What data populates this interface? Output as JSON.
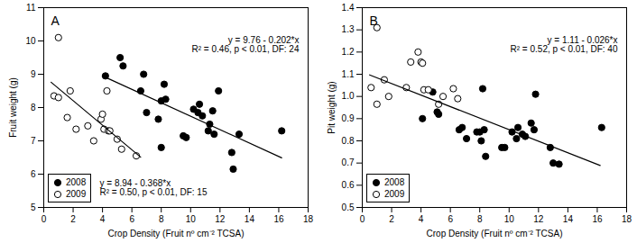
{
  "chart_data": [
    {
      "type": "scatter",
      "title": "A",
      "x_label": "Crop Density (Fruit nº cm⁻² TCSA)",
      "y_label": "Fruit weight (g)",
      "xlim": [
        0,
        18
      ],
      "xticks": [
        0,
        2,
        4,
        6,
        8,
        10,
        12,
        14,
        16,
        18
      ],
      "ylim": [
        5,
        11
      ],
      "yticks": [
        5,
        6,
        7,
        8,
        9,
        10,
        11
      ],
      "legend": "bottom-left",
      "annotations": [
        [
          "y = 9.76 - 0.202*x",
          "R² = 0.46, p < 0.01, DF: 24"
        ],
        [
          "y = 8.94 - 0.368*x",
          "R² = 0.50, p < 0.01, DF: 15"
        ]
      ],
      "series": [
        {
          "name": "2008",
          "color": "#000000",
          "marker": "filled",
          "x": [
            4.2,
            5.2,
            5.4,
            6.6,
            6.8,
            7.0,
            7.8,
            8.0,
            8.0,
            8.2,
            8.3,
            9.5,
            9.7,
            10.2,
            10.5,
            10.6,
            10.8,
            11.2,
            11.3,
            11.5,
            11.9,
            11.6,
            12.8,
            12.9,
            13.3,
            16.2
          ],
          "values": [
            8.95,
            9.5,
            9.25,
            8.5,
            9.0,
            7.85,
            7.65,
            6.8,
            8.2,
            8.7,
            8.25,
            7.15,
            7.1,
            7.95,
            7.85,
            8.1,
            7.75,
            7.3,
            7.5,
            7.9,
            8.5,
            7.2,
            6.65,
            6.15,
            7.2,
            7.3
          ]
        },
        {
          "name": "2009",
          "color": "#000000",
          "marker": "open",
          "x": [
            1.0,
            0.7,
            1.0,
            1.8,
            1.6,
            2.2,
            3.0,
            3.4,
            3.9,
            4.0,
            4.1,
            4.3,
            4.4,
            4.5,
            5.0,
            5.3,
            6.3
          ],
          "values": [
            10.1,
            8.35,
            8.3,
            8.5,
            7.7,
            7.35,
            7.45,
            7.0,
            7.65,
            7.8,
            7.35,
            8.5,
            7.3,
            7.3,
            7.05,
            6.75,
            6.55
          ]
        },
        {
          "type": "line",
          "color": "#000000",
          "x": [
            4.0,
            16.2
          ],
          "values": [
            8.95,
            6.49
          ]
        },
        {
          "type": "line",
          "color": "#000000",
          "x": [
            0.5,
            6.6
          ],
          "values": [
            8.76,
            6.51
          ]
        }
      ]
    },
    {
      "type": "scatter",
      "title": "B",
      "x_label": "Crop Density (Fruit nº cm⁻² TCSA)",
      "y_label": "Pit weight (g)",
      "xlim": [
        0,
        18
      ],
      "xticks": [
        0,
        2,
        4,
        6,
        8,
        10,
        12,
        14,
        16,
        18
      ],
      "ylim": [
        0.5,
        1.4
      ],
      "yticks": [
        0.5,
        0.6,
        0.7,
        0.8,
        0.9,
        {
          "value": 1,
          "label": "1.0"
        },
        1.1,
        1.2,
        1.3,
        1.4
      ],
      "legend": "bottom-left",
      "annotations": [
        [
          "y = 1.11 - 0.026*x",
          "R² = 0.52, p < 0.01, DF: 40"
        ]
      ],
      "series": [
        {
          "name": "2008",
          "color": "#000000",
          "marker": "filled",
          "x": [
            4.1,
            4.8,
            5.1,
            5.2,
            6.6,
            6.8,
            7.1,
            7.8,
            8.0,
            8.1,
            8.2,
            8.3,
            8.4,
            9.5,
            9.7,
            10.2,
            10.5,
            10.6,
            10.9,
            11.1,
            11.5,
            11.8,
            11.7,
            12.8,
            13.0,
            13.4,
            16.3
          ],
          "values": [
            0.9,
            1.02,
            0.93,
            0.92,
            0.85,
            0.86,
            0.81,
            0.84,
            0.84,
            0.8,
            1.035,
            0.85,
            0.73,
            0.77,
            0.77,
            0.84,
            0.81,
            0.86,
            0.83,
            0.82,
            0.88,
            1.01,
            0.85,
            0.77,
            0.7,
            0.695,
            0.86
          ]
        },
        {
          "name": "2009",
          "color": "#000000",
          "marker": "open",
          "x": [
            1.0,
            0.6,
            1.0,
            1.5,
            1.8,
            3.0,
            3.3,
            3.8,
            4.0,
            4.1,
            4.2,
            4.5,
            5.2,
            5.5,
            6.2,
            6.5
          ],
          "values": [
            1.31,
            1.04,
            0.965,
            1.075,
            1.0,
            1.04,
            1.155,
            1.2,
            1.155,
            1.15,
            1.03,
            1.03,
            0.965,
            1.0,
            1.035,
            0.99
          ]
        },
        {
          "type": "line",
          "color": "#000000",
          "x": [
            0.5,
            16.2
          ],
          "values": [
            1.097,
            0.689
          ]
        }
      ]
    }
  ]
}
